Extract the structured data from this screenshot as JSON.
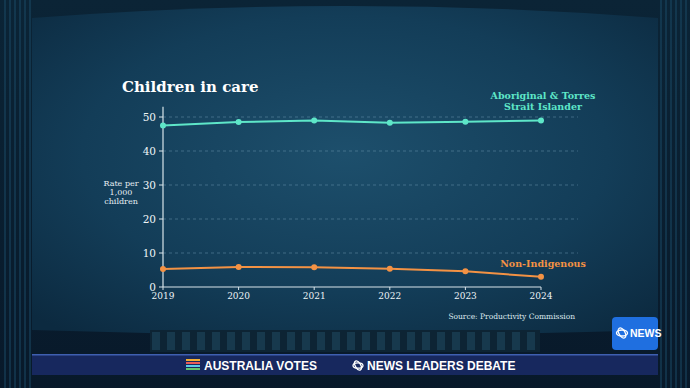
{
  "chart_data": {
    "type": "line",
    "title": "Children in care",
    "y_label": "Rate per 1,000 children",
    "x": [
      2019,
      2020,
      2021,
      2022,
      2023,
      2024
    ],
    "xlim": [
      2019,
      2024
    ],
    "xticks": [
      2019,
      2020,
      2021,
      2022,
      2023,
      2024
    ],
    "ylim": [
      0,
      53
    ],
    "yticks": [
      0,
      10,
      20,
      30,
      40,
      50
    ],
    "grid": true,
    "marker": "circle",
    "series": [
      {
        "name": "Aboriginal & Torres Strait Islander",
        "color": "#5ee6c8",
        "values": [
          47.5,
          48.5,
          49.0,
          48.3,
          48.6,
          49.0
        ]
      },
      {
        "name": "Non-Indigenous",
        "color": "#f39244",
        "values": [
          5.3,
          5.9,
          5.8,
          5.4,
          4.6,
          3.0
        ]
      }
    ],
    "annotations": [
      "Source: Productivity Commission"
    ]
  },
  "broadcast": {
    "banner_left": "AUSTRALIA VOTES",
    "banner_right": "NEWS LEADERS DEBATE",
    "logo": "NEWS"
  }
}
